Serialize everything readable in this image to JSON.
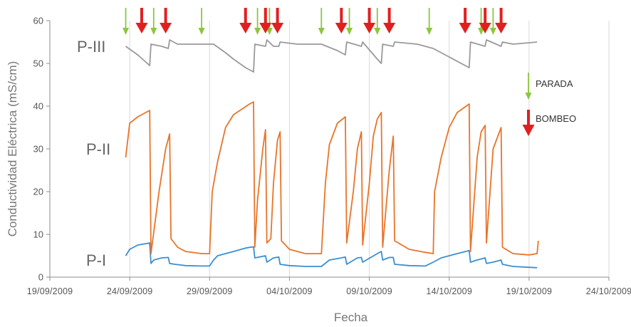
{
  "chart_data": {
    "type": "line",
    "title": "",
    "xlabel": "Fecha",
    "ylabel": "Conductividad Eléctrica (mS/cm)",
    "ylim": [
      0,
      60
    ],
    "yticks": [
      0,
      10,
      20,
      30,
      40,
      50,
      60
    ],
    "xlim": [
      "2009-09-19",
      "2009-10-24"
    ],
    "xtick_labels": [
      "19/09/2009",
      "24/09/2009",
      "29/09/2009",
      "04/10/2009",
      "09/10/2009",
      "14/10/2009",
      "19/10/2009",
      "24/10/2009"
    ],
    "grid": "vertical",
    "colors": {
      "P-I": "#3a8fd0",
      "P-II": "#e8742a",
      "P-III": "#9a9a9a",
      "parada": "#8cc63f",
      "bombeo": "#e02020"
    },
    "series": [
      {
        "name": "P-I",
        "points": [
          [
            "2009-09-23 18:00",
            5.0
          ],
          [
            "2009-09-24 00:00",
            6.5
          ],
          [
            "2009-09-24 12:00",
            7.5
          ],
          [
            "2009-09-25 06:00",
            8.0
          ],
          [
            "2009-09-25 08:00",
            3.2
          ],
          [
            "2009-09-25 12:00",
            4.0
          ],
          [
            "2009-09-26 00:00",
            4.5
          ],
          [
            "2009-09-26 10:00",
            4.6
          ],
          [
            "2009-09-26 12:00",
            3.2
          ],
          [
            "2009-09-26 20:00",
            3.0
          ],
          [
            "2009-09-27 12:00",
            2.7
          ],
          [
            "2009-09-28 12:00",
            2.6
          ],
          [
            "2009-09-29 00:00",
            2.6
          ],
          [
            "2009-09-29 06:00",
            4.0
          ],
          [
            "2009-09-29 12:00",
            5.0
          ],
          [
            "2009-09-30 12:00",
            6.0
          ],
          [
            "2009-10-01 06:00",
            6.8
          ],
          [
            "2009-10-01 18:00",
            7.1
          ],
          [
            "2009-10-01 20:00",
            4.5
          ],
          [
            "2009-10-02 12:00",
            5.0
          ],
          [
            "2009-10-02 14:00",
            3.5
          ],
          [
            "2009-10-03 00:00",
            4.5
          ],
          [
            "2009-10-03 08:00",
            4.7
          ],
          [
            "2009-10-03 10:00",
            3.0
          ],
          [
            "2009-10-04 00:00",
            2.7
          ],
          [
            "2009-10-05 00:00",
            2.5
          ],
          [
            "2009-10-06 00:00",
            2.5
          ],
          [
            "2009-10-06 12:00",
            4.0
          ],
          [
            "2009-10-07 06:00",
            4.5
          ],
          [
            "2009-10-07 12:00",
            4.7
          ],
          [
            "2009-10-07 14:00",
            3.0
          ],
          [
            "2009-10-08 06:00",
            4.5
          ],
          [
            "2009-10-08 12:00",
            4.6
          ],
          [
            "2009-10-08 14:00",
            3.5
          ],
          [
            "2009-10-09 12:00",
            5.5
          ],
          [
            "2009-10-09 18:00",
            6.0
          ],
          [
            "2009-10-09 20:00",
            4.0
          ],
          [
            "2009-10-10 06:00",
            4.6
          ],
          [
            "2009-10-10 12:00",
            4.6
          ],
          [
            "2009-10-10 14:00",
            3.0
          ],
          [
            "2009-10-11 12:00",
            2.7
          ],
          [
            "2009-10-12 12:00",
            2.6
          ],
          [
            "2009-10-13 00:00",
            3.5
          ],
          [
            "2009-10-13 12:00",
            4.5
          ],
          [
            "2009-10-14 12:00",
            5.5
          ],
          [
            "2009-10-15 06:00",
            6.2
          ],
          [
            "2009-10-15 08:00",
            3.5
          ],
          [
            "2009-10-15 18:00",
            4.0
          ],
          [
            "2009-10-16 06:00",
            4.5
          ],
          [
            "2009-10-16 08:00",
            3.2
          ],
          [
            "2009-10-16 18:00",
            3.5
          ],
          [
            "2009-10-17 06:00",
            4.0
          ],
          [
            "2009-10-17 08:00",
            3.0
          ],
          [
            "2009-10-18 00:00",
            2.5
          ],
          [
            "2009-10-19 00:00",
            2.3
          ],
          [
            "2009-10-19 12:00",
            2.2
          ]
        ]
      },
      {
        "name": "P-II",
        "points": [
          [
            "2009-09-23 18:00",
            28.0
          ],
          [
            "2009-09-24 00:00",
            36.0
          ],
          [
            "2009-09-24 12:00",
            37.5
          ],
          [
            "2009-09-25 00:00",
            38.5
          ],
          [
            "2009-09-25 06:00",
            39.0
          ],
          [
            "2009-09-25 08:00",
            5.5
          ],
          [
            "2009-09-25 20:00",
            20.0
          ],
          [
            "2009-09-26 06:00",
            30.0
          ],
          [
            "2009-09-26 12:00",
            33.5
          ],
          [
            "2009-09-26 14:00",
            9.0
          ],
          [
            "2009-09-27 00:00",
            7.0
          ],
          [
            "2009-09-27 12:00",
            6.0
          ],
          [
            "2009-09-28 12:00",
            5.5
          ],
          [
            "2009-09-29 00:00",
            5.5
          ],
          [
            "2009-09-29 04:00",
            20.0
          ],
          [
            "2009-09-29 12:00",
            27.0
          ],
          [
            "2009-09-30 00:00",
            35.0
          ],
          [
            "2009-09-30 12:00",
            38.0
          ],
          [
            "2009-10-01 12:00",
            40.5
          ],
          [
            "2009-10-01 18:00",
            41.0
          ],
          [
            "2009-10-01 20:00",
            7.0
          ],
          [
            "2009-10-02 00:00",
            18.0
          ],
          [
            "2009-10-02 08:00",
            30.0
          ],
          [
            "2009-10-02 12:00",
            34.5
          ],
          [
            "2009-10-02 14:00",
            8.0
          ],
          [
            "2009-10-02 20:00",
            9.0
          ],
          [
            "2009-10-03 00:00",
            22.0
          ],
          [
            "2009-10-03 06:00",
            32.0
          ],
          [
            "2009-10-03 10:00",
            34.0
          ],
          [
            "2009-10-03 12:00",
            8.5
          ],
          [
            "2009-10-04 00:00",
            6.5
          ],
          [
            "2009-10-05 00:00",
            5.5
          ],
          [
            "2009-10-06 00:00",
            5.5
          ],
          [
            "2009-10-06 06:00",
            22.0
          ],
          [
            "2009-10-06 12:00",
            31.0
          ],
          [
            "2009-10-07 00:00",
            36.0
          ],
          [
            "2009-10-07 12:00",
            37.5
          ],
          [
            "2009-10-07 14:00",
            8.0
          ],
          [
            "2009-10-08 00:00",
            20.0
          ],
          [
            "2009-10-08 06:00",
            30.0
          ],
          [
            "2009-10-08 12:00",
            34.0
          ],
          [
            "2009-10-08 14:00",
            7.5
          ],
          [
            "2009-10-09 00:00",
            22.0
          ],
          [
            "2009-10-09 06:00",
            33.0
          ],
          [
            "2009-10-09 12:00",
            37.0
          ],
          [
            "2009-10-09 18:00",
            38.5
          ],
          [
            "2009-10-09 20:00",
            7.0
          ],
          [
            "2009-10-10 06:00",
            25.0
          ],
          [
            "2009-10-10 12:00",
            33.0
          ],
          [
            "2009-10-10 14:00",
            8.5
          ],
          [
            "2009-10-11 12:00",
            6.5
          ],
          [
            "2009-10-12 12:00",
            5.8
          ],
          [
            "2009-10-13 00:00",
            5.5
          ],
          [
            "2009-10-13 02:00",
            20.0
          ],
          [
            "2009-10-13 12:00",
            28.0
          ],
          [
            "2009-10-14 00:00",
            35.0
          ],
          [
            "2009-10-14 12:00",
            38.5
          ],
          [
            "2009-10-15 06:00",
            40.5
          ],
          [
            "2009-10-15 08:00",
            6.0
          ],
          [
            "2009-10-15 18:00",
            28.0
          ],
          [
            "2009-10-16 00:00",
            34.0
          ],
          [
            "2009-10-16 06:00",
            35.5
          ],
          [
            "2009-10-16 08:00",
            8.0
          ],
          [
            "2009-10-16 18:00",
            30.0
          ],
          [
            "2009-10-17 06:00",
            35.0
          ],
          [
            "2009-10-17 08:00",
            7.0
          ],
          [
            "2009-10-18 00:00",
            5.5
          ],
          [
            "2009-10-19 00:00",
            5.2
          ],
          [
            "2009-10-19 12:00",
            5.5
          ],
          [
            "2009-10-19 14:00",
            8.5
          ]
        ]
      },
      {
        "name": "P-III",
        "points": [
          [
            "2009-09-23 18:00",
            54.0
          ],
          [
            "2009-09-24 12:00",
            52.0
          ],
          [
            "2009-09-25 06:00",
            49.5
          ],
          [
            "2009-09-25 08:00",
            54.5
          ],
          [
            "2009-09-26 00:00",
            54.0
          ],
          [
            "2009-09-26 10:00",
            53.5
          ],
          [
            "2009-09-26 12:00",
            55.5
          ],
          [
            "2009-09-27 00:00",
            54.5
          ],
          [
            "2009-09-28 12:00",
            54.5
          ],
          [
            "2009-09-29 06:00",
            54.5
          ],
          [
            "2009-09-30 00:00",
            52.5
          ],
          [
            "2009-09-30 12:00",
            51.0
          ],
          [
            "2009-10-01 06:00",
            49.0
          ],
          [
            "2009-10-01 18:00",
            48.0
          ],
          [
            "2009-10-01 20:00",
            54.5
          ],
          [
            "2009-10-02 12:00",
            54.0
          ],
          [
            "2009-10-02 14:00",
            55.5
          ],
          [
            "2009-10-03 00:00",
            54.0
          ],
          [
            "2009-10-03 08:00",
            54.0
          ],
          [
            "2009-10-03 10:00",
            55.0
          ],
          [
            "2009-10-04 12:00",
            54.5
          ],
          [
            "2009-10-06 00:00",
            54.5
          ],
          [
            "2009-10-07 00:00",
            53.0
          ],
          [
            "2009-10-07 12:00",
            52.0
          ],
          [
            "2009-10-07 14:00",
            55.0
          ],
          [
            "2009-10-08 12:00",
            54.0
          ],
          [
            "2009-10-08 14:00",
            55.0
          ],
          [
            "2009-10-09 12:00",
            51.0
          ],
          [
            "2009-10-09 18:00",
            50.0
          ],
          [
            "2009-10-09 20:00",
            54.5
          ],
          [
            "2009-10-10 12:00",
            54.0
          ],
          [
            "2009-10-10 14:00",
            55.0
          ],
          [
            "2009-10-12 00:00",
            54.5
          ],
          [
            "2009-10-13 00:00",
            53.5
          ],
          [
            "2009-10-14 00:00",
            51.5
          ],
          [
            "2009-10-15 06:00",
            49.0
          ],
          [
            "2009-10-15 08:00",
            55.0
          ],
          [
            "2009-10-16 06:00",
            54.0
          ],
          [
            "2009-10-16 08:00",
            55.5
          ],
          [
            "2009-10-17 06:00",
            54.0
          ],
          [
            "2009-10-17 08:00",
            55.0
          ],
          [
            "2009-10-18 00:00",
            54.5
          ],
          [
            "2009-10-19 12:00",
            55.0
          ]
        ]
      }
    ],
    "series_labels": [
      "P-III",
      "P-II",
      "P-I"
    ],
    "annotations": {
      "parada": [
        "2009-09-23 18:00",
        "2009-09-25 12:00",
        "2009-09-28 12:00",
        "2009-10-02 00:00",
        "2009-10-02 18:00",
        "2009-10-06 00:00",
        "2009-10-07 18:00",
        "2009-10-09 12:00",
        "2009-10-12 18:00",
        "2009-10-16 00:00",
        "2009-10-16 18:00"
      ],
      "bombeo": [
        "2009-09-24 18:00",
        "2009-09-26 06:00",
        "2009-10-01 06:00",
        "2009-10-02 12:00",
        "2009-10-03 06:00",
        "2009-10-07 06:00",
        "2009-10-09 00:00",
        "2009-10-10 06:00",
        "2009-10-15 00:00",
        "2009-10-16 06:00",
        "2009-10-17 06:00"
      ]
    },
    "legend": [
      {
        "name": "PARADA",
        "kind": "parada"
      },
      {
        "name": "BOMBEO",
        "kind": "bombeo"
      }
    ],
    "legend_position": "right"
  }
}
